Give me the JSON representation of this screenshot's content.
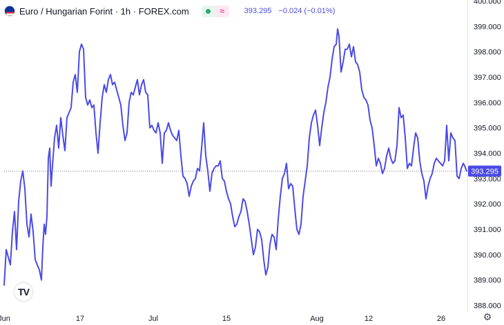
{
  "header": {
    "title": "Euro / Hungarian Forint · 1h · FOREX.com",
    "price": "393.295",
    "change": "−0.024 (−0.01%)",
    "flag_icon": "eur-huf-flag-icon",
    "market_status_icon": "market-open-dot-icon",
    "compare_icon": "compare-icon"
  },
  "price_label": "393.295",
  "logo_text": "TV",
  "settings_icon": "gear-icon",
  "colors": {
    "line": "#4a4ae6",
    "axis_text": "#131722",
    "price_label_bg": "#4a4ae6",
    "price_line": "#7a7a7a"
  },
  "chart_data": {
    "type": "line",
    "title": "",
    "xlabel": "",
    "ylabel": "",
    "ylim": [
      387.77,
      400.04
    ],
    "y_ticks": [
      388.0,
      389.0,
      390.0,
      391.0,
      392.0,
      393.0,
      394.0,
      395.0,
      396.0,
      397.0,
      398.0,
      399.0,
      400.0
    ],
    "y_tick_labels": [
      "388.000",
      "389.000",
      "390.000",
      "391.000",
      "392.000",
      "393.000",
      "394.000",
      "395.000",
      "396.000",
      "397.000",
      "398.000",
      "399.000",
      "400.000"
    ],
    "x_range": [
      0,
      670
    ],
    "x_ticks": [
      {
        "label": "Jun",
        "x": 0
      },
      {
        "label": "17",
        "x": 110
      },
      {
        "label": "Jul",
        "x": 216
      },
      {
        "label": "15",
        "x": 322
      },
      {
        "label": "Aug",
        "x": 453
      },
      {
        "label": "12",
        "x": 528
      },
      {
        "label": "26",
        "x": 633
      }
    ],
    "last_price": 393.295,
    "grid": false,
    "series": [
      {
        "name": "",
        "points": [
          [
            0,
            388.8
          ],
          [
            3,
            390.2
          ],
          [
            6,
            389.9
          ],
          [
            9,
            389.6
          ],
          [
            12,
            390.9
          ],
          [
            15,
            391.7
          ],
          [
            18,
            390.2
          ],
          [
            21,
            392.1
          ],
          [
            24,
            392.9
          ],
          [
            27,
            393.3
          ],
          [
            30,
            392.6
          ],
          [
            33,
            391.2
          ],
          [
            36,
            390.7
          ],
          [
            39,
            391.6
          ],
          [
            42,
            390.9
          ],
          [
            45,
            389.8
          ],
          [
            48,
            389.6
          ],
          [
            51,
            389.4
          ],
          [
            54,
            389.0
          ],
          [
            56,
            390.3
          ],
          [
            58,
            391.2
          ],
          [
            60,
            390.8
          ],
          [
            62,
            391.5
          ],
          [
            64,
            393.8
          ],
          [
            66,
            394.2
          ],
          [
            68,
            392.7
          ],
          [
            70,
            393.5
          ],
          [
            73,
            394.6
          ],
          [
            76,
            395.1
          ],
          [
            79,
            394.2
          ],
          [
            82,
            395.4
          ],
          [
            85,
            394.7
          ],
          [
            88,
            394.1
          ],
          [
            91,
            395.4
          ],
          [
            94,
            395.6
          ],
          [
            97,
            395.8
          ],
          [
            100,
            396.8
          ],
          [
            103,
            397.1
          ],
          [
            106,
            396.4
          ],
          [
            109,
            398.0
          ],
          [
            112,
            398.3
          ],
          [
            115,
            398.1
          ],
          [
            118,
            396.2
          ],
          [
            121,
            395.9
          ],
          [
            124,
            396.1
          ],
          [
            127,
            395.8
          ],
          [
            130,
            395.9
          ],
          [
            133,
            394.8
          ],
          [
            136,
            394.0
          ],
          [
            139,
            395.2
          ],
          [
            142,
            396.2
          ],
          [
            145,
            396.7
          ],
          [
            148,
            396.4
          ],
          [
            151,
            396.9
          ],
          [
            154,
            397.1
          ],
          [
            157,
            396.7
          ],
          [
            160,
            396.8
          ],
          [
            163,
            396.5
          ],
          [
            166,
            396.2
          ],
          [
            169,
            395.9
          ],
          [
            172,
            395.1
          ],
          [
            175,
            394.5
          ],
          [
            178,
            394.8
          ],
          [
            181,
            396.0
          ],
          [
            184,
            396.4
          ],
          [
            187,
            396.3
          ],
          [
            190,
            396.6
          ],
          [
            193,
            396.9
          ],
          [
            196,
            396.3
          ],
          [
            199,
            396.7
          ],
          [
            202,
            396.9
          ],
          [
            205,
            396.4
          ],
          [
            208,
            396.3
          ],
          [
            211,
            395.0
          ],
          [
            214,
            395.1
          ],
          [
            217,
            394.9
          ],
          [
            220,
            394.8
          ],
          [
            223,
            395.2
          ],
          [
            226,
            394.8
          ],
          [
            229,
            393.6
          ],
          [
            232,
            394.8
          ],
          [
            235,
            394.9
          ],
          [
            238,
            395.2
          ],
          [
            241,
            394.9
          ],
          [
            244,
            394.7
          ],
          [
            247,
            394.6
          ],
          [
            250,
            394.5
          ],
          [
            253,
            394.9
          ],
          [
            256,
            393.9
          ],
          [
            259,
            393.1
          ],
          [
            262,
            393.0
          ],
          [
            265,
            392.8
          ],
          [
            268,
            392.3
          ],
          [
            271,
            392.7
          ],
          [
            274,
            392.9
          ],
          [
            277,
            393.0
          ],
          [
            280,
            393.4
          ],
          [
            283,
            393.3
          ],
          [
            286,
            394.2
          ],
          [
            289,
            395.2
          ],
          [
            292,
            393.9
          ],
          [
            295,
            393.3
          ],
          [
            298,
            392.5
          ],
          [
            301,
            393.2
          ],
          [
            304,
            393.4
          ],
          [
            307,
            393.5
          ],
          [
            310,
            393.5
          ],
          [
            313,
            393.7
          ],
          [
            316,
            393.0
          ],
          [
            319,
            392.9
          ],
          [
            322,
            392.5
          ],
          [
            325,
            392.2
          ],
          [
            328,
            392.0
          ],
          [
            331,
            391.5
          ],
          [
            334,
            391.1
          ],
          [
            337,
            391.2
          ],
          [
            340,
            391.5
          ],
          [
            343,
            391.7
          ],
          [
            346,
            392.2
          ],
          [
            349,
            392.1
          ],
          [
            352,
            391.7
          ],
          [
            355,
            391.2
          ],
          [
            358,
            390.6
          ],
          [
            361,
            390.0
          ],
          [
            364,
            390.3
          ],
          [
            367,
            391.0
          ],
          [
            370,
            390.9
          ],
          [
            373,
            390.6
          ],
          [
            376,
            389.8
          ],
          [
            379,
            389.2
          ],
          [
            382,
            389.5
          ],
          [
            385,
            390.4
          ],
          [
            388,
            390.8
          ],
          [
            391,
            390.7
          ],
          [
            394,
            390.2
          ],
          [
            397,
            391.4
          ],
          [
            400,
            392.3
          ],
          [
            403,
            393.0
          ],
          [
            406,
            393.2
          ],
          [
            409,
            393.6
          ],
          [
            412,
            392.6
          ],
          [
            415,
            392.8
          ],
          [
            418,
            392.7
          ],
          [
            421,
            391.8
          ],
          [
            424,
            391.0
          ],
          [
            427,
            390.8
          ],
          [
            430,
            391.2
          ],
          [
            433,
            392.3
          ],
          [
            436,
            392.9
          ],
          [
            439,
            393.5
          ],
          [
            442,
            394.6
          ],
          [
            445,
            395.2
          ],
          [
            448,
            395.5
          ],
          [
            451,
            395.7
          ],
          [
            454,
            395.1
          ],
          [
            457,
            394.3
          ],
          [
            460,
            395.0
          ],
          [
            463,
            395.6
          ],
          [
            466,
            396.0
          ],
          [
            469,
            396.6
          ],
          [
            472,
            397.0
          ],
          [
            475,
            397.7
          ],
          [
            478,
            398.2
          ],
          [
            481,
            398.3
          ],
          [
            483,
            398.9
          ],
          [
            485,
            398.6
          ],
          [
            488,
            397.2
          ],
          [
            491,
            397.6
          ],
          [
            494,
            398.1
          ],
          [
            497,
            398.1
          ],
          [
            500,
            398.3
          ],
          [
            503,
            397.8
          ],
          [
            506,
            398.2
          ],
          [
            509,
            397.6
          ],
          [
            512,
            397.5
          ],
          [
            515,
            397.2
          ],
          [
            518,
            396.5
          ],
          [
            521,
            396.2
          ],
          [
            524,
            396.1
          ],
          [
            527,
            395.9
          ],
          [
            530,
            395.3
          ],
          [
            533,
            395.0
          ],
          [
            536,
            394.3
          ],
          [
            539,
            393.5
          ],
          [
            542,
            393.8
          ],
          [
            545,
            393.6
          ],
          [
            548,
            393.2
          ],
          [
            551,
            393.4
          ],
          [
            554,
            393.9
          ],
          [
            557,
            394.2
          ],
          [
            560,
            393.8
          ],
          [
            563,
            393.6
          ],
          [
            566,
            393.7
          ],
          [
            569,
            394.3
          ],
          [
            572,
            395.8
          ],
          [
            575,
            395.4
          ],
          [
            578,
            395.5
          ],
          [
            581,
            394.6
          ],
          [
            584,
            393.4
          ],
          [
            587,
            393.6
          ],
          [
            590,
            393.5
          ],
          [
            593,
            394.2
          ],
          [
            596,
            394.8
          ],
          [
            599,
            394.6
          ],
          [
            602,
            393.7
          ],
          [
            605,
            393.2
          ],
          [
            608,
            392.9
          ],
          [
            611,
            392.2
          ],
          [
            614,
            392.7
          ],
          [
            617,
            393.0
          ],
          [
            620,
            393.2
          ],
          [
            623,
            393.6
          ],
          [
            626,
            393.8
          ],
          [
            629,
            393.7
          ],
          [
            632,
            393.6
          ],
          [
            635,
            393.5
          ],
          [
            638,
            393.7
          ],
          [
            641,
            395.1
          ],
          [
            644,
            393.7
          ],
          [
            647,
            394.8
          ],
          [
            650,
            394.6
          ],
          [
            653,
            394.5
          ],
          [
            656,
            393.1
          ],
          [
            659,
            393.0
          ],
          [
            662,
            393.4
          ],
          [
            665,
            393.6
          ],
          [
            667,
            393.5
          ],
          [
            670,
            393.295
          ]
        ]
      }
    ]
  }
}
